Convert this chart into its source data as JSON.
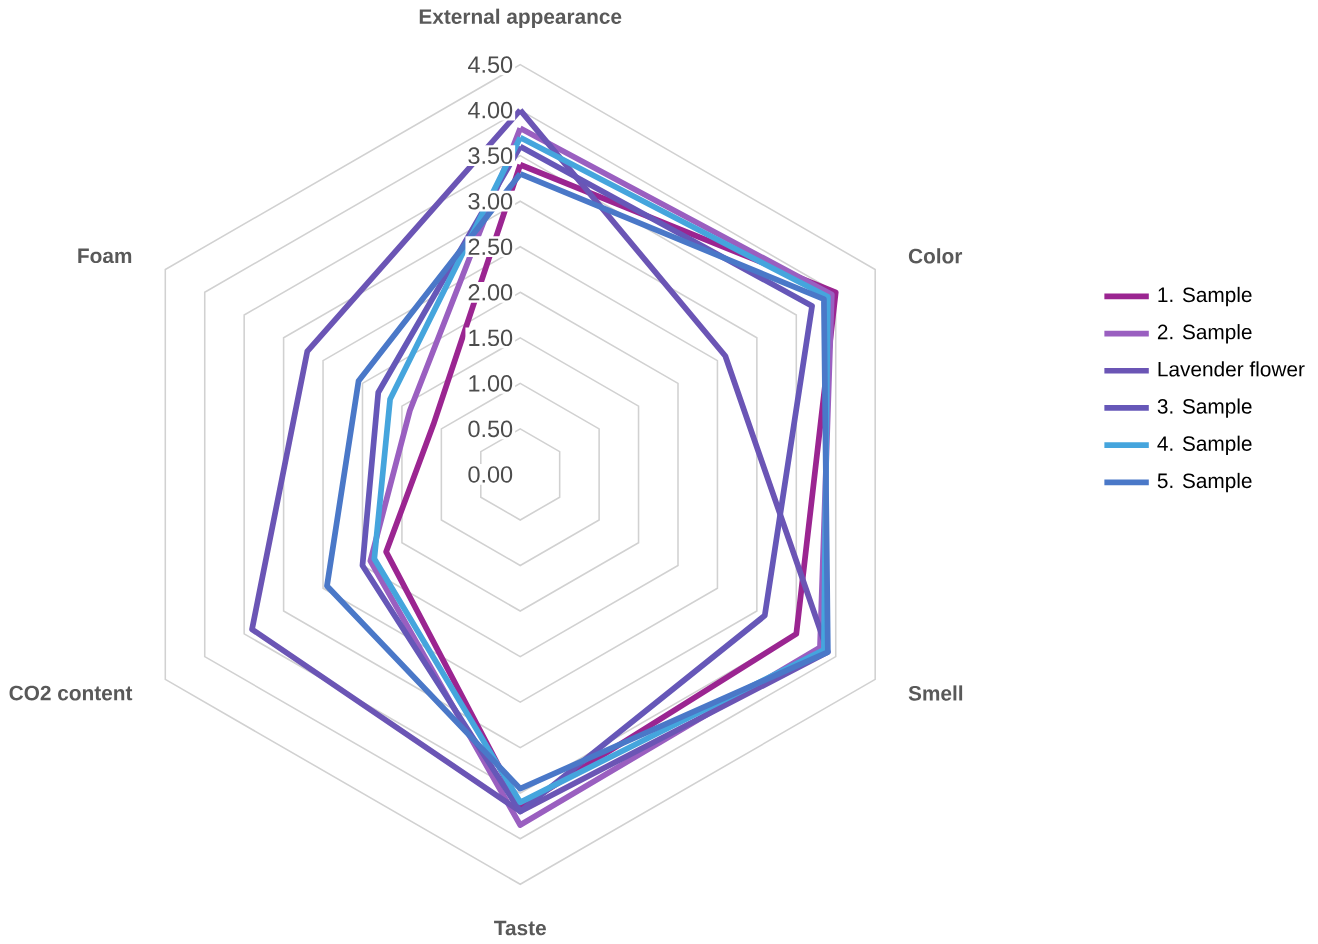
{
  "chart_data": {
    "type": "radar",
    "categories": [
      "External appearance",
      "Color",
      "Smell",
      "Taste",
      "CO2 content",
      "Foam"
    ],
    "ylim": [
      0,
      4.5
    ],
    "yticks": [
      {
        "value": 0,
        "label": "0.00"
      },
      {
        "value": 0.5,
        "label": "0.50"
      },
      {
        "value": 1,
        "label": "1.00"
      },
      {
        "value": 1.5,
        "label": "1.50"
      },
      {
        "value": 2,
        "label": "2.00"
      },
      {
        "value": 2.5,
        "label": "2.50"
      },
      {
        "value": 3,
        "label": "3.00"
      },
      {
        "value": 3.5,
        "label": "3.50"
      },
      {
        "value": 4,
        "label": "4.00"
      },
      {
        "value": 4.5,
        "label": "4.50"
      }
    ],
    "grid": true,
    "legend": "right",
    "line_style": "solid",
    "series": [
      {
        "name": "1. Sample",
        "color": "#9b2591",
        "values": [
          3.4,
          4.0,
          3.5,
          3.65,
          1.7,
          1.1
        ]
      },
      {
        "name": "2. Sample",
        "color": "#9a5fc0",
        "values": [
          3.8,
          3.95,
          3.8,
          3.85,
          1.9,
          1.4
        ]
      },
      {
        "name": "Lavender flower",
        "color": "#6b55b5",
        "values": [
          4.0,
          2.6,
          3.9,
          3.7,
          3.4,
          2.7
        ]
      },
      {
        "name": "3. Sample",
        "color": "#6657b8",
        "values": [
          3.6,
          3.7,
          3.1,
          3.7,
          2.0,
          1.8
        ]
      },
      {
        "name": "4. Sample",
        "color": "#45a5dd",
        "values": [
          3.7,
          3.9,
          3.85,
          3.6,
          1.85,
          1.65
        ]
      },
      {
        "name": "5. Sample",
        "color": "#4a78c8",
        "values": [
          3.3,
          3.85,
          3.9,
          3.45,
          2.45,
          2.05
        ]
      }
    ]
  }
}
